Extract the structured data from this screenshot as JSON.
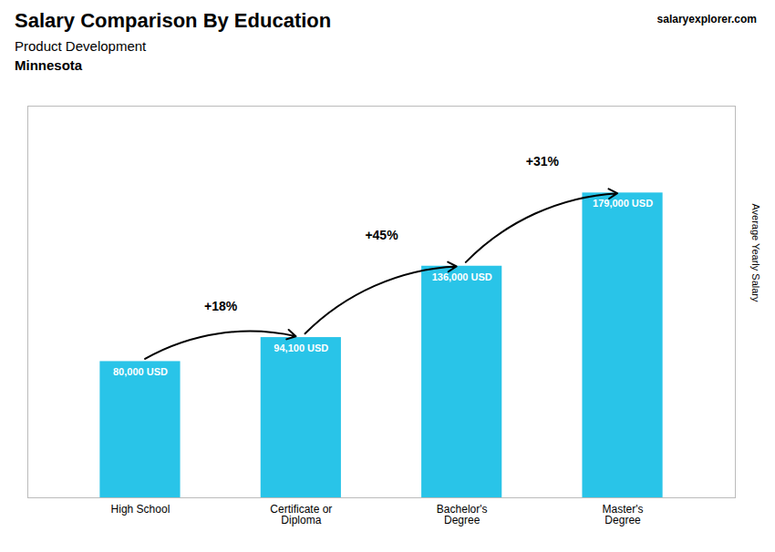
{
  "chart_data": {
    "type": "bar",
    "title": "Salary Comparison By Education",
    "subtitle": "Product Development",
    "location": "Minnesota",
    "watermark": "salaryexplorer.com",
    "ylabel": "Average Yearly Salary",
    "categories": [
      "High School",
      "Certificate or\nDiploma",
      "Bachelor's\nDegree",
      "Master's\nDegree"
    ],
    "values": [
      80000,
      94100,
      136000,
      179000
    ],
    "value_labels": [
      "80,000 USD",
      "94,100 USD",
      "136,000 USD",
      "179,000 USD"
    ],
    "annotations": [
      "+18%",
      "+45%",
      "+31%"
    ],
    "color": "#29c4e8",
    "ylim": [
      0,
      230000
    ],
    "data_labels": true,
    "tick_labels": "x",
    "grid": false
  }
}
